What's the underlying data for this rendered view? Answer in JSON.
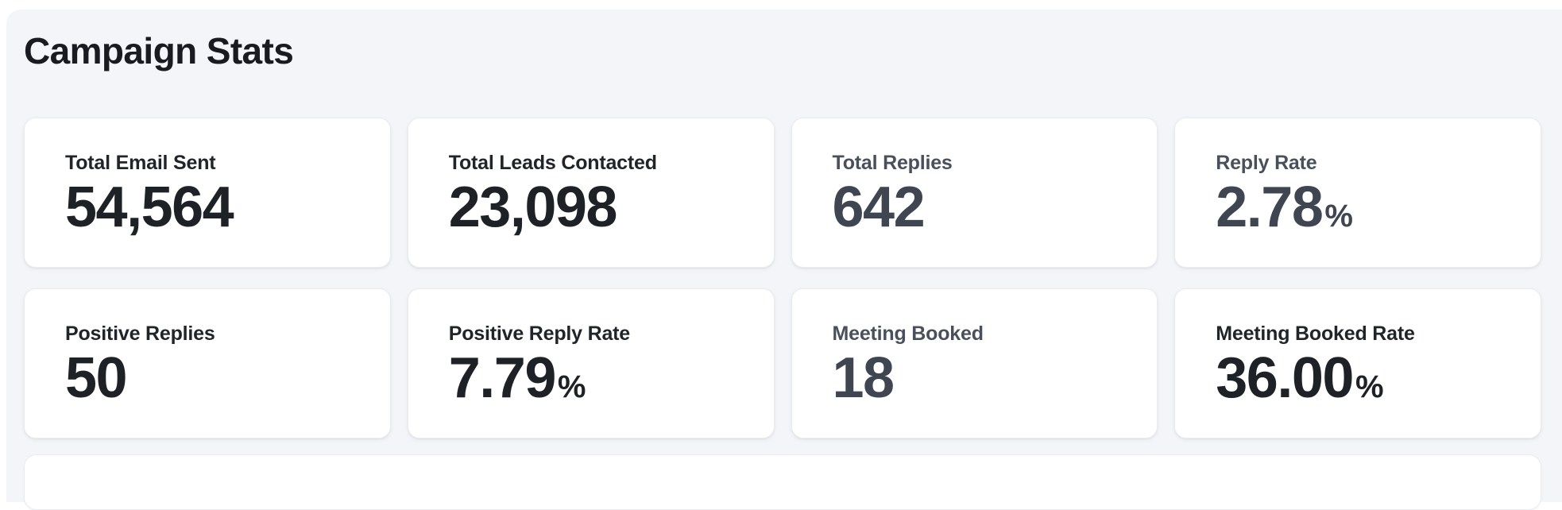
{
  "header": {
    "title": "Campaign Stats"
  },
  "colors": {
    "page_bg": "#FFFFFF",
    "panel_bg": "#F4F5F8",
    "card_bg": "#FFFFFF",
    "card_border": "#EAECF0",
    "heading_text": "#191B20",
    "dark_label": "#212429",
    "dark_value": "#1E2126",
    "muted_label": "#4A505B",
    "muted_value": "#3F4551"
  },
  "stats": [
    {
      "label": "Total Email Sent",
      "value": "54,564",
      "unit": "",
      "tone": "dark"
    },
    {
      "label": "Total Leads Contacted",
      "value": "23,098",
      "unit": "",
      "tone": "dark"
    },
    {
      "label": "Total Replies",
      "value": "642",
      "unit": "",
      "tone": "muted"
    },
    {
      "label": "Reply Rate",
      "value": "2.78",
      "unit": "%",
      "tone": "muted"
    },
    {
      "label": "Positive Replies",
      "value": "50",
      "unit": "",
      "tone": "dark"
    },
    {
      "label": "Positive Reply Rate",
      "value": "7.79",
      "unit": "%",
      "tone": "dark"
    },
    {
      "label": "Meeting Booked",
      "value": "18",
      "unit": "",
      "tone": "muted"
    },
    {
      "label": "Meeting Booked Rate",
      "value": "36.00",
      "unit": "%",
      "tone": "dark"
    }
  ]
}
